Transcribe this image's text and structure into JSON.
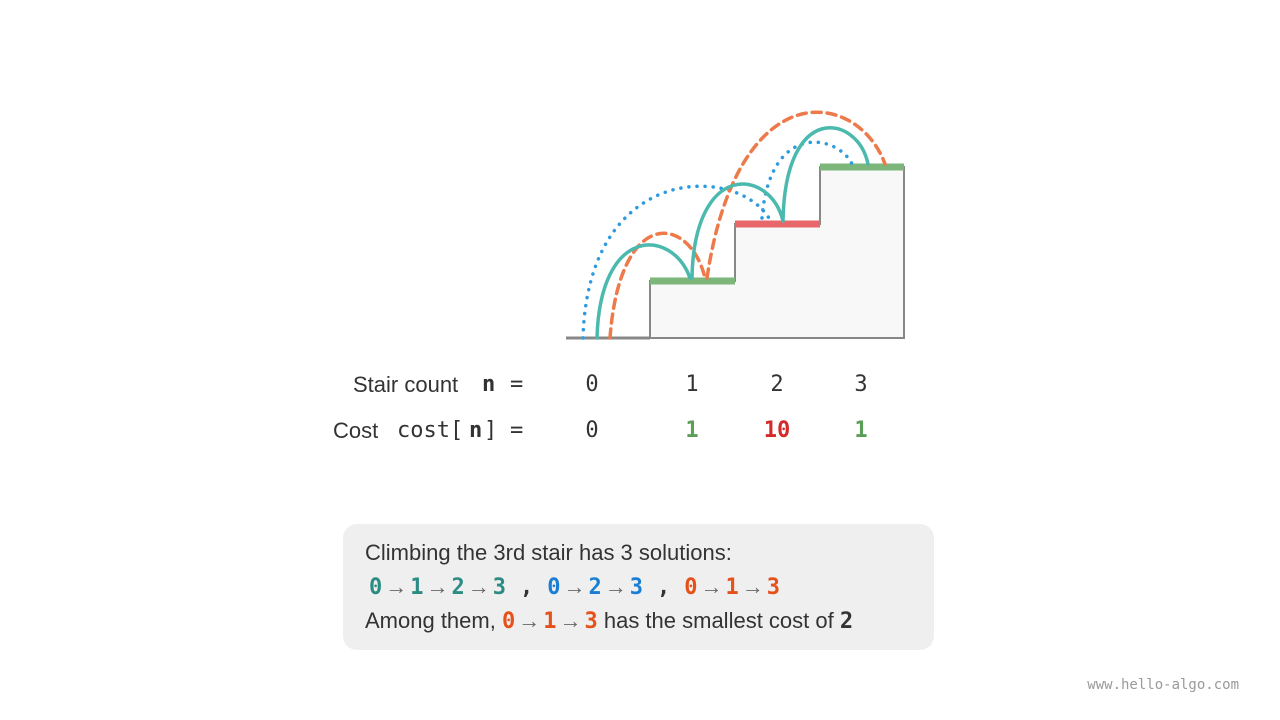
{
  "stairs": {
    "count_label": "Stair count",
    "n_symbol": "n",
    "equals": "=",
    "indices": [
      0,
      1,
      2,
      3
    ],
    "cost_label": "Cost",
    "cost_open": "cost[",
    "cost_close": "]",
    "costs": [
      0,
      1,
      10,
      1
    ]
  },
  "caption": {
    "line1": "Climbing the 3rd stair has 3 solutions:",
    "solutions": [
      [
        0,
        1,
        2,
        3
      ],
      [
        0,
        2,
        3
      ],
      [
        0,
        1,
        3
      ]
    ],
    "arrow": "→",
    "separator": ",",
    "line3_prefix": "Among them,",
    "line3_middle": "has the smallest cost of",
    "min_cost": 2
  },
  "watermark": "www.hello-algo.com"
}
